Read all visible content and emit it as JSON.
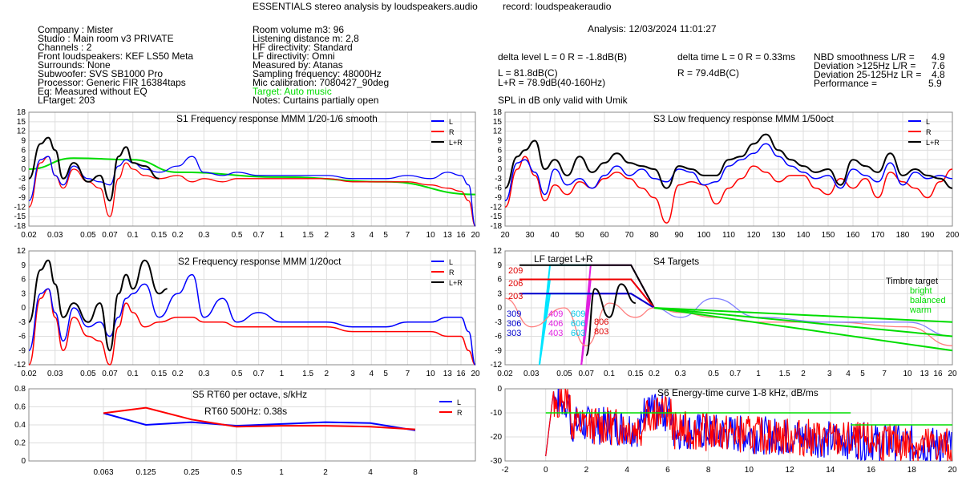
{
  "header": {
    "title": "ESSENTIALS stereo analysis by loudspeakers.audio",
    "record": "record: loudspeakeraudio",
    "analysis": "Analysis: 12/03/2024 11:01:27",
    "spl_note": "SPL in dB only valid with Umik"
  },
  "info_left": [
    "Company : Mister",
    "Studio : Main room v3 PRIVATE",
    "Channels : 2",
    "Front loudspeakers: KEF LS50 Meta",
    "Surrounds: None",
    "Subwoofer: SVS SB1000 Pro",
    "Processor: Generic FIR 16384taps",
    "Eq: Measured without EQ",
    "LFtarget: 203"
  ],
  "info_mid": [
    "Room volume m3: 96",
    "Listening distance m: 2,8",
    "HF directivity: Standard",
    "LF directivity: Omni",
    "Measured by: Atanas",
    "Sampling frequency: 48000Hz",
    "Mic calibration: 7080427_90deg",
    "Target: Auto music",
    "Notes: Curtains partially open"
  ],
  "metrics": {
    "delta_level": "delta level L = 0  R = -1.8dB(B)",
    "delta_time": "delta time  L = 0  R = 0.33ms",
    "spl_l": "L =     81.8dB(C)",
    "spl_lr": "L+R = 78.9dB(40-160Hz)",
    "spl_r": "R =     79.4dB(C)",
    "nbd_label": "NBD smoothness L/R =",
    "nbd_value": "4.9",
    "dev_hi_label": "Deviation >125Hz L/R =",
    "dev_hi_value": "7.6",
    "dev_lo_label": "Deviation 25-125Hz LR =",
    "dev_lo_value": "4.8",
    "perf_label": "Performance =",
    "perf_value": "5.9"
  },
  "colors": {
    "L": "#0000ff",
    "R": "#ff0000",
    "LR": "#000000",
    "target": "#00dd00",
    "cyan": "#00e5ff",
    "magenta": "#e020e0"
  },
  "legend": {
    "L": "L",
    "R": "R",
    "LR": "L+R"
  },
  "chart_data": [
    {
      "id": "S1",
      "type": "line",
      "title": "S1  Frequency response MMM 1/20-1/6 smooth",
      "xscale": "log",
      "xlim": [
        0.02,
        20
      ],
      "ylim": [
        -18,
        18
      ],
      "xticks": [
        "0.02",
        "0.03",
        "0.05",
        "0.07",
        "0.1",
        "0.15",
        "0.2",
        "0.3",
        "0.5",
        "0.7",
        "1",
        "1.5",
        "2",
        "3",
        "4",
        "5",
        "7",
        "10",
        "13",
        "16",
        "20"
      ],
      "yticks": [
        "18",
        "15",
        "12",
        "9",
        "6",
        "3",
        "0",
        "-3",
        "-6",
        "-9",
        "-12",
        "-15",
        "-18"
      ],
      "series": [
        {
          "name": "L",
          "x": [
            0.02,
            0.024,
            0.027,
            0.03,
            0.034,
            0.04,
            0.05,
            0.06,
            0.07,
            0.08,
            0.09,
            0.1,
            0.12,
            0.15,
            0.2,
            0.25,
            0.3,
            0.4,
            0.5,
            0.7,
            1,
            2,
            3,
            5,
            7,
            10,
            13,
            16,
            18,
            20
          ],
          "values": [
            -10,
            3,
            4,
            -2,
            -5,
            1,
            -3,
            -4,
            -5,
            1,
            3,
            2,
            0,
            -1,
            1,
            4,
            -1,
            -2,
            -1,
            -2,
            -2,
            -2,
            -3,
            -3,
            -2,
            -3,
            -1,
            -2,
            -5,
            -18
          ]
        },
        {
          "name": "R",
          "x": [
            0.02,
            0.024,
            0.027,
            0.03,
            0.034,
            0.04,
            0.05,
            0.06,
            0.07,
            0.08,
            0.09,
            0.1,
            0.12,
            0.15,
            0.2,
            0.25,
            0.3,
            0.4,
            0.5,
            0.7,
            1,
            2,
            3,
            5,
            7,
            10,
            13,
            16,
            18,
            20
          ],
          "values": [
            -12,
            2,
            4,
            -2,
            -6,
            0,
            -4,
            -6,
            -15,
            -3,
            2,
            0,
            -2,
            -3,
            -2,
            -4,
            -3,
            -4,
            -3,
            -3,
            -3,
            -3,
            -4,
            -4,
            -4,
            -5,
            -6,
            -7,
            -10,
            -18
          ]
        },
        {
          "name": "L+R",
          "x": [
            0.02,
            0.024,
            0.027,
            0.03,
            0.034,
            0.04,
            0.05,
            0.06,
            0.07,
            0.08,
            0.09,
            0.1,
            0.12,
            0.15
          ],
          "values": [
            -3,
            8,
            10,
            6,
            -3,
            2,
            -4,
            -2,
            -10,
            4,
            7,
            2,
            1,
            -3
          ]
        },
        {
          "name": "Target",
          "x": [
            0.02,
            0.04,
            0.1,
            0.2,
            1,
            5,
            20
          ],
          "values": [
            0,
            3.5,
            3,
            -1,
            -2.5,
            -4,
            -8
          ]
        }
      ]
    },
    {
      "id": "S3",
      "type": "line",
      "title": "S3  Low frequency response MMM 1/50oct",
      "xscale": "linear",
      "xlim": [
        20,
        200
      ],
      "ylim": [
        -18,
        18
      ],
      "xticks": [
        "20",
        "30",
        "40",
        "50",
        "60",
        "70",
        "80",
        "90",
        "100",
        "110",
        "120",
        "130",
        "140",
        "150",
        "160",
        "170",
        "180",
        "190",
        "200"
      ],
      "yticks": [
        "18",
        "15",
        "12",
        "9",
        "6",
        "3",
        "0",
        "-3",
        "-6",
        "-9",
        "-12",
        "-15",
        "-18"
      ],
      "series": [
        {
          "name": "L",
          "x": [
            20,
            25,
            28,
            32,
            36,
            40,
            45,
            50,
            55,
            60,
            65,
            70,
            75,
            80,
            85,
            90,
            95,
            100,
            105,
            110,
            115,
            120,
            125,
            130,
            135,
            140,
            145,
            150,
            155,
            160,
            165,
            170,
            175,
            180,
            185,
            190,
            195,
            200
          ],
          "values": [
            -10,
            2,
            3,
            -1,
            -8,
            0,
            -5,
            -3,
            -6,
            -2,
            1,
            -2,
            0,
            -3,
            -4,
            0,
            -1,
            -5,
            -4,
            1,
            3,
            5,
            8,
            4,
            1,
            -1,
            -3,
            -2,
            -6,
            0,
            -2,
            -4,
            2,
            -5,
            -1,
            -3,
            -2,
            -3
          ]
        },
        {
          "name": "R",
          "x": [
            20,
            25,
            28,
            32,
            36,
            40,
            45,
            50,
            55,
            60,
            65,
            70,
            75,
            80,
            85,
            90,
            95,
            100,
            105,
            110,
            115,
            120,
            125,
            130,
            135,
            140,
            145,
            150,
            155,
            160,
            165,
            170,
            175,
            180,
            185,
            190,
            195,
            200
          ],
          "values": [
            -12,
            0,
            4,
            -2,
            -10,
            -5,
            -8,
            -4,
            -6,
            -3,
            -1,
            -3,
            -6,
            -9,
            -17,
            -5,
            -4,
            -5,
            -11,
            -6,
            -3,
            1,
            -1,
            -4,
            -2,
            -2,
            -6,
            -8,
            -3,
            -6,
            -3,
            -9,
            -1,
            -4,
            -6,
            -9,
            -4,
            0
          ]
        },
        {
          "name": "L+R",
          "x": [
            20,
            25,
            28,
            32,
            36,
            40,
            45,
            50,
            55,
            60,
            65,
            70,
            75,
            80,
            85,
            90,
            95,
            100,
            105,
            110,
            115,
            120,
            125,
            130,
            135,
            140,
            145,
            150,
            155,
            160,
            165,
            170,
            175,
            180,
            185,
            190,
            195,
            200
          ],
          "values": [
            -6,
            4,
            6,
            9,
            0,
            3,
            -2,
            4,
            -1,
            2,
            5,
            2,
            1,
            0,
            -6,
            1,
            0,
            -2,
            -2,
            3,
            4,
            8,
            11,
            6,
            3,
            1,
            -1,
            0,
            -5,
            3,
            1,
            -1,
            5,
            -2,
            0,
            -2,
            -3,
            -6
          ]
        }
      ]
    },
    {
      "id": "S2",
      "type": "line",
      "title": "S2  Frequency response MMM 1/20oct",
      "xscale": "log",
      "xlim": [
        0.02,
        20
      ],
      "ylim": [
        -12,
        12
      ],
      "xticks": [
        "0.02",
        "0.03",
        "0.05",
        "0.07",
        "0.1",
        "0.15",
        "0.2",
        "0.3",
        "0.5",
        "0.7",
        "1",
        "1.5",
        "2",
        "3",
        "4",
        "5",
        "7",
        "10",
        "13",
        "16",
        "20"
      ],
      "yticks": [
        "12",
        "9",
        "6",
        "3",
        "0",
        "-3",
        "-6",
        "-9",
        "-12"
      ],
      "series": [
        {
          "name": "L",
          "x": [
            0.02,
            0.024,
            0.027,
            0.03,
            0.034,
            0.04,
            0.05,
            0.06,
            0.07,
            0.08,
            0.09,
            0.1,
            0.12,
            0.15,
            0.2,
            0.25,
            0.3,
            0.4,
            0.5,
            0.7,
            1,
            2,
            3,
            5,
            7,
            10,
            13,
            16,
            18,
            20
          ],
          "values": [
            -9,
            3,
            4,
            -1,
            -7,
            0,
            -4,
            -3,
            -6,
            -2,
            2,
            3,
            5,
            -2,
            3,
            7,
            -2,
            2,
            -3,
            -1,
            -3,
            -3,
            -4,
            -4,
            -3,
            -3,
            -2,
            -2,
            -5,
            -12
          ]
        },
        {
          "name": "R",
          "x": [
            0.02,
            0.024,
            0.027,
            0.03,
            0.034,
            0.04,
            0.05,
            0.06,
            0.07,
            0.08,
            0.09,
            0.1,
            0.12,
            0.15,
            0.2,
            0.25,
            0.3,
            0.4,
            0.5,
            0.7,
            1,
            2,
            3,
            5,
            7,
            10,
            13,
            16,
            18,
            20
          ],
          "values": [
            -12,
            2,
            4,
            -2,
            -9,
            -2,
            -6,
            -7,
            -12,
            -4,
            1,
            -1,
            -4,
            -3,
            -2,
            -2,
            -3,
            -3,
            -4,
            -4,
            -4,
            -4,
            -5,
            -5,
            -5,
            -5,
            -6,
            -6,
            -9,
            -12
          ]
        },
        {
          "name": "L+R",
          "x": [
            0.02,
            0.024,
            0.027,
            0.03,
            0.034,
            0.04,
            0.05,
            0.06,
            0.07,
            0.08,
            0.09,
            0.1,
            0.12,
            0.15,
            0.17
          ],
          "values": [
            -3,
            8,
            10,
            5,
            -2,
            1,
            -3,
            1,
            -9,
            3,
            7,
            4,
            10,
            3,
            4
          ]
        }
      ]
    },
    {
      "id": "S4",
      "type": "line",
      "title": "S4 Targets",
      "subtitle": "LF target L+R",
      "timbre_label": "Timbre target",
      "timbre_items": [
        "bright",
        "balanced",
        "warm"
      ],
      "lf_codes": {
        "red": [
          "209",
          "206",
          "203",
          "806",
          "803"
        ],
        "blue": [
          "309",
          "306",
          "303"
        ],
        "magenta": [
          "409",
          "406",
          "403"
        ],
        "cyan": [
          "609",
          "606",
          "603"
        ]
      },
      "xscale": "log",
      "xlim": [
        0.02,
        20
      ],
      "ylim": [
        -12,
        12
      ],
      "xticks": [
        "0.02",
        "0.03",
        "0.05",
        "0.07",
        "0.1",
        "0.15",
        "0.2",
        "0.3",
        "0.5",
        "0.7",
        "1",
        "1.5",
        "2",
        "3",
        "4",
        "5",
        "7",
        "10",
        "13",
        "16",
        "20"
      ],
      "yticks": [
        "12",
        "9",
        "6",
        "3",
        "0",
        "-3",
        "-6",
        "-9",
        "-12"
      ],
      "series": [
        {
          "name": "bright",
          "x": [
            0.2,
            20
          ],
          "values": [
            0,
            -3
          ]
        },
        {
          "name": "balanced",
          "x": [
            0.2,
            20
          ],
          "values": [
            0,
            -6
          ]
        },
        {
          "name": "warm",
          "x": [
            0.2,
            20
          ],
          "values": [
            0,
            -9
          ]
        }
      ]
    },
    {
      "id": "S5",
      "type": "line",
      "title": "S5  RT60 per octave, s/kHz",
      "annotation": "RT60 500Hz: 0.38s",
      "xscale": "log",
      "ylim": [
        0,
        0.8
      ],
      "xticks": [
        "0.063",
        "0.125",
        "0.25",
        "0.5",
        "1",
        "2",
        "4",
        "8"
      ],
      "yticks": [
        "0.8",
        "0.6",
        "0.4",
        "0.2",
        "0"
      ],
      "series": [
        {
          "name": "L",
          "x": [
            0.063,
            0.125,
            0.25,
            0.5,
            1,
            2,
            4,
            8
          ],
          "values": [
            0.53,
            0.4,
            0.43,
            0.39,
            0.41,
            0.43,
            0.42,
            0.34
          ]
        },
        {
          "name": "R",
          "x": [
            0.063,
            0.125,
            0.25,
            0.5,
            1,
            2,
            4,
            8
          ],
          "values": [
            0.53,
            0.59,
            0.46,
            0.38,
            0.39,
            0.39,
            0.38,
            0.35
          ]
        }
      ]
    },
    {
      "id": "S6",
      "type": "line",
      "title": "S6  Energy-time curve 1-8 kHz, dB/ms",
      "xscale": "linear",
      "xlim": [
        -2,
        20
      ],
      "ylim": [
        -30,
        0
      ],
      "xticks": [
        "-2",
        "0",
        "2",
        "4",
        "6",
        "8",
        "10",
        "12",
        "14",
        "16",
        "18",
        "20"
      ],
      "yticks": [
        "0",
        "-10",
        "-20",
        "-30"
      ],
      "series": [
        {
          "name": "Target",
          "x": [
            0,
            15
          ],
          "values": [
            -10,
            -10
          ]
        },
        {
          "name": "Target late",
          "x": [
            15,
            20
          ],
          "values": [
            -15,
            -15
          ]
        }
      ]
    }
  ]
}
